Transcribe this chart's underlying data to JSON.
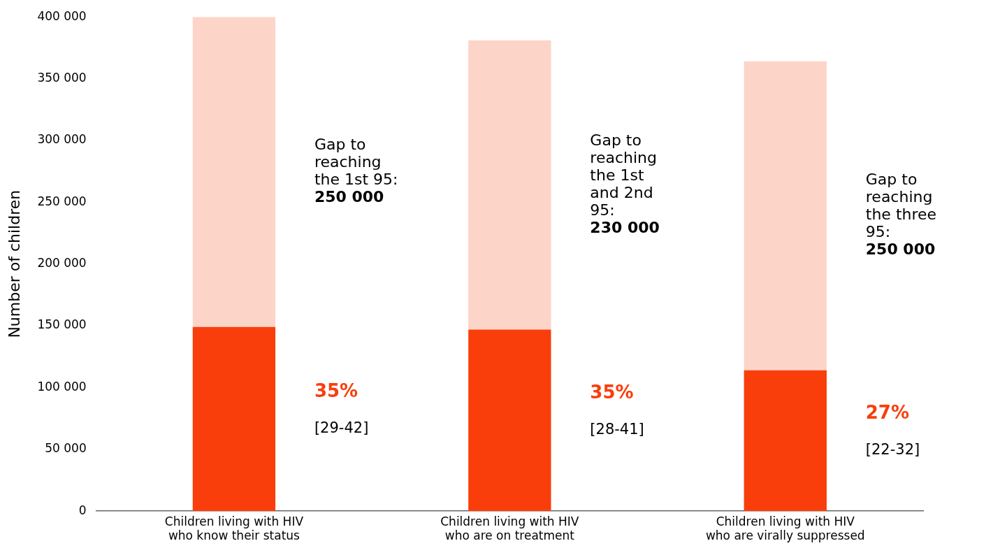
{
  "chart_data": {
    "type": "bar",
    "stacked": true,
    "ylabel": "Number of children",
    "categories": [
      "Children living with HIV\nwho know their status",
      "Children living with HIV\nwho are on treatment",
      "Children living with HIV\nwho are virally suppressed"
    ],
    "series": [
      {
        "color": "#f93e0c",
        "values": [
          149000,
          147000,
          114000
        ]
      },
      {
        "color": "#fdd5c8",
        "values": [
          251000,
          234000,
          250000
        ]
      }
    ],
    "ylim": [
      0,
      400000
    ],
    "yticks": [
      {
        "value": 0,
        "label": "0"
      },
      {
        "value": 50000,
        "label": "50 000"
      },
      {
        "value": 100000,
        "label": "100 000"
      },
      {
        "value": 150000,
        "label": "150 000"
      },
      {
        "value": 200000,
        "label": "200 000"
      },
      {
        "value": 250000,
        "label": "250 000"
      },
      {
        "value": 300000,
        "label": "300 000"
      },
      {
        "value": 350000,
        "label": "350 000"
      },
      {
        "value": 400000,
        "label": "400 000"
      }
    ],
    "grid": false,
    "legend": false,
    "annotations": [
      "Gap to\nreaching\nthe 1st 95:",
      "250 000",
      "35%",
      "[29-42]",
      "Gap to\nreaching\nthe 1st\nand 2nd\n95:",
      "230 000",
      "35%",
      "[28-41]",
      "Gap to\nreaching\nthe three\n95:",
      "250 000",
      "27%",
      "[22-32]"
    ]
  }
}
